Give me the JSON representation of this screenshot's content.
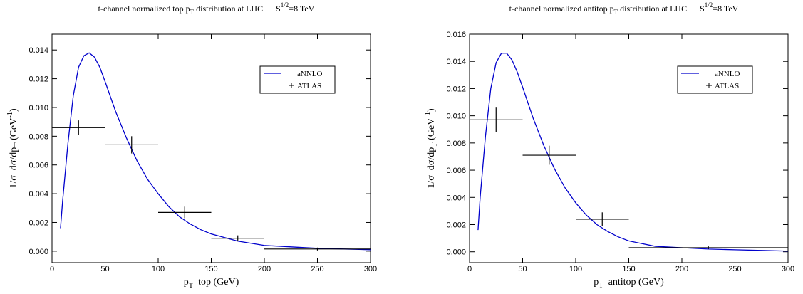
{
  "chart_data": [
    {
      "type": "line",
      "title": [
        {
          "text": "t-channel normalized top p"
        },
        {
          "text": "T",
          "shift": "sub"
        },
        {
          "text": " distribution at LHC      S"
        },
        {
          "text": "1/2",
          "shift": "sup"
        },
        {
          "text": "=8 TeV"
        }
      ],
      "x_label": [
        {
          "text": "p"
        },
        {
          "text": "T",
          "shift": "sub"
        },
        {
          "text": "  top (GeV)"
        }
      ],
      "y_label": [
        {
          "text": "1/σ  dσ/dp"
        },
        {
          "text": "T",
          "shift": "sub"
        },
        {
          "text": " (GeV"
        },
        {
          "text": "-1",
          "shift": "sup"
        },
        {
          "text": ")"
        }
      ],
      "xlim": [
        0,
        300
      ],
      "ylim": [
        -0.0008,
        0.0151
      ],
      "xticks": [
        0,
        50,
        100,
        150,
        200,
        250,
        300
      ],
      "yticks": [
        {
          "value": 0,
          "label": "0.000"
        },
        {
          "value": 0.002,
          "label": "0.002"
        },
        {
          "value": 0.004,
          "label": "0.004"
        },
        {
          "value": 0.006,
          "label": "0.006"
        },
        {
          "value": 0.008,
          "label": "0.008"
        },
        {
          "value": 0.01,
          "label": "0.010"
        },
        {
          "value": 0.012,
          "label": "0.012"
        },
        {
          "value": 0.014,
          "label": "0.014"
        }
      ],
      "legend": "upper right",
      "series": [
        {
          "name": "aNNLO",
          "type": "line",
          "color": "#0000cc",
          "x": [
            8,
            10,
            15,
            20,
            25,
            30,
            35,
            40,
            45,
            50,
            60,
            70,
            80,
            90,
            100,
            110,
            120,
            130,
            140,
            150,
            175,
            200,
            225,
            250,
            275,
            300
          ],
          "values": [
            0.0016,
            0.0035,
            0.0075,
            0.0108,
            0.0128,
            0.0136,
            0.0138,
            0.0135,
            0.0128,
            0.0118,
            0.0097,
            0.0079,
            0.0063,
            0.005,
            0.004,
            0.0031,
            0.0024,
            0.0019,
            0.0015,
            0.0012,
            0.0007,
            0.0004,
            0.0003,
            0.0002,
            0.00015,
            0.0001
          ]
        },
        {
          "name": "ATLAS",
          "type": "errorbar",
          "color": "#000000",
          "x": [
            25,
            75,
            125,
            175,
            250
          ],
          "x_low": [
            0,
            50,
            100,
            150,
            200
          ],
          "x_high": [
            50,
            100,
            150,
            200,
            300
          ],
          "values": [
            0.0086,
            0.0074,
            0.0027,
            0.0009,
            0.00015
          ],
          "errors": [
            0.0005,
            0.0006,
            0.0004,
            0.0002,
            0.0001
          ]
        }
      ]
    },
    {
      "type": "line",
      "title": [
        {
          "text": "t-channel normalized antitop p"
        },
        {
          "text": "T",
          "shift": "sub"
        },
        {
          "text": " distribution at LHC      S"
        },
        {
          "text": "1/2",
          "shift": "sup"
        },
        {
          "text": "=8 TeV"
        }
      ],
      "x_label": [
        {
          "text": "p"
        },
        {
          "text": "T",
          "shift": "sub"
        },
        {
          "text": "  antitop (GeV)"
        }
      ],
      "y_label": [
        {
          "text": "1/σ  dσ/dp"
        },
        {
          "text": "T",
          "shift": "sub"
        },
        {
          "text": " (GeV"
        },
        {
          "text": "-1",
          "shift": "sup"
        },
        {
          "text": ")"
        }
      ],
      "xlim": [
        0,
        300
      ],
      "ylim": [
        -0.0008,
        0.016
      ],
      "xticks": [
        0,
        50,
        100,
        150,
        200,
        250,
        300
      ],
      "yticks": [
        {
          "value": 0,
          "label": "0.000"
        },
        {
          "value": 0.002,
          "label": "0.002"
        },
        {
          "value": 0.004,
          "label": "0.004"
        },
        {
          "value": 0.006,
          "label": "0.006"
        },
        {
          "value": 0.008,
          "label": "0.008"
        },
        {
          "value": 0.01,
          "label": "0.010"
        },
        {
          "value": 0.012,
          "label": "0.012"
        },
        {
          "value": 0.014,
          "label": "0.014"
        },
        {
          "value": 0.016,
          "label": "0.016"
        }
      ],
      "legend": "upper right",
      "series": [
        {
          "name": "aNNLO",
          "type": "line",
          "color": "#0000cc",
          "x": [
            8,
            10,
            15,
            20,
            25,
            30,
            35,
            40,
            45,
            50,
            60,
            70,
            80,
            90,
            100,
            110,
            120,
            130,
            140,
            150,
            175,
            200,
            225,
            250,
            275,
            300
          ],
          "values": [
            0.0016,
            0.004,
            0.0085,
            0.012,
            0.0139,
            0.0146,
            0.0146,
            0.0141,
            0.0132,
            0.0121,
            0.0098,
            0.0078,
            0.0061,
            0.0047,
            0.0036,
            0.0027,
            0.002,
            0.0015,
            0.0011,
            0.0008,
            0.0004,
            0.0003,
            0.0002,
            0.00015,
            0.0001,
            5e-05
          ]
        },
        {
          "name": "ATLAS",
          "type": "errorbar",
          "color": "#000000",
          "x": [
            25,
            75,
            125,
            225
          ],
          "x_low": [
            0,
            50,
            100,
            150
          ],
          "x_high": [
            50,
            100,
            150,
            300
          ],
          "values": [
            0.0097,
            0.0071,
            0.0024,
            0.0003
          ],
          "errors": [
            0.0009,
            0.0007,
            0.0005,
            0.0001
          ]
        }
      ]
    }
  ]
}
